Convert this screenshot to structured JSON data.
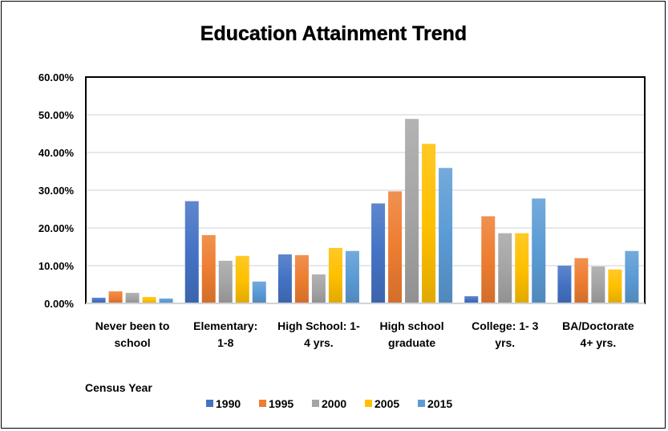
{
  "chart_data": {
    "type": "bar",
    "title": "Education Attainment Trend",
    "legend_title": "Census Year",
    "legend_position": "bottom",
    "grid": true,
    "ylim": [
      0,
      60
    ],
    "yticks": [
      "0.00%",
      "10.00%",
      "20.00%",
      "30.00%",
      "40.00%",
      "50.00%",
      "60.00%"
    ],
    "categories": [
      [
        "Never been to",
        "school"
      ],
      [
        "Elementary:",
        "1-8"
      ],
      [
        "High School: 1-",
        "4 yrs."
      ],
      [
        "High school",
        "graduate"
      ],
      [
        "College: 1- 3",
        "yrs."
      ],
      [
        "BA/Doctorate",
        "4+ yrs."
      ]
    ],
    "series": [
      {
        "name": "1990",
        "color": "#4472C4",
        "values": [
          1.5,
          27.1,
          13.0,
          26.5,
          1.9,
          10.0
        ]
      },
      {
        "name": "1995",
        "color": "#ED7D31",
        "values": [
          3.2,
          18.1,
          12.8,
          29.7,
          23.1,
          12.0
        ]
      },
      {
        "name": "2000",
        "color": "#A5A5A5",
        "values": [
          2.8,
          11.3,
          7.7,
          48.9,
          18.6,
          9.8
        ]
      },
      {
        "name": "2005",
        "color": "#FFC000",
        "values": [
          1.7,
          12.6,
          14.7,
          42.3,
          18.6,
          9.0
        ]
      },
      {
        "name": "2015",
        "color": "#5B9BD5",
        "values": [
          1.3,
          5.8,
          13.9,
          35.9,
          27.8,
          13.9
        ]
      }
    ]
  }
}
